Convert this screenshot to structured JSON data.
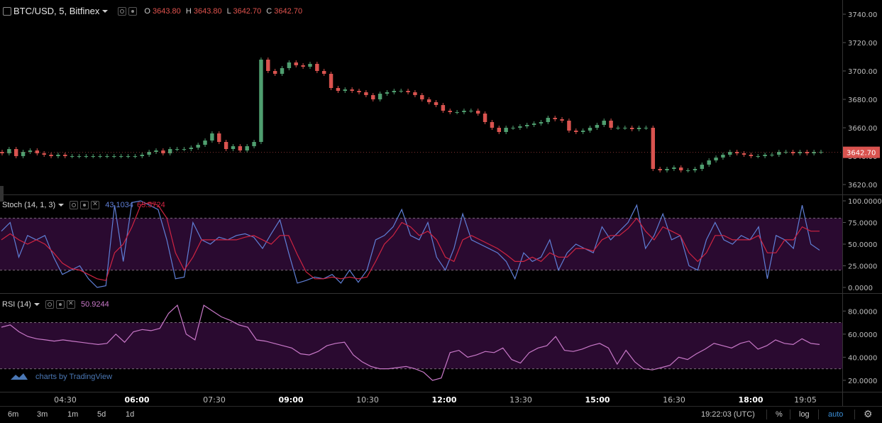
{
  "header": {
    "symbol": "BTC/USD, 5, Bitfinex",
    "ohlc": [
      {
        "key": "O",
        "value": "3643.80"
      },
      {
        "key": "H",
        "value": "3643.80"
      },
      {
        "key": "L",
        "value": "3642.70"
      },
      {
        "key": "C",
        "value": "3642.70"
      }
    ]
  },
  "stoch": {
    "label": "Stoch (14, 1, 3)",
    "k": "43.1034",
    "d": "65.5724"
  },
  "rsi": {
    "label": "RSI (14)",
    "value": "50.9244"
  },
  "watermark": "charts by TradingView",
  "bottom": {
    "ranges": [
      "6m",
      "3m",
      "1m",
      "5d",
      "1d"
    ],
    "clock": "19:22:03 (UTC)",
    "percent": "%",
    "log": "log",
    "auto": "auto"
  },
  "colors": {
    "up": "#4f9e6f",
    "down": "#d9534f",
    "stoch_k": "#5f7fd6",
    "stoch_d": "#d02442",
    "rsi": "#c878c8",
    "band": "#2a0a30"
  },
  "chart_data": [
    {
      "type": "candlestick",
      "title": "BTC/USD, 5, Bitfinex",
      "ylim": [
        3615,
        3748
      ],
      "yticks": [
        "3740.00",
        "3720.00",
        "3700.00",
        "3680.00",
        "3660.00",
        "3640.00",
        "3620.00"
      ],
      "last_price": "3642.70",
      "xticks": [
        "04:30",
        "06:00",
        "07:30",
        "09:00",
        "10:30",
        "12:00",
        "13:30",
        "15:00",
        "16:30",
        "18:00",
        "19:05"
      ],
      "series": [
        {
          "values": [
            3642,
            3645,
            3640,
            3643,
            3644,
            3642,
            3641,
            3640,
            3641,
            3640,
            3640,
            3640,
            3640,
            3640,
            3640,
            3640,
            3640,
            3640,
            3640,
            3640,
            3641,
            3643,
            3644,
            3642,
            3645,
            3645,
            3645,
            3646,
            3648,
            3651,
            3656,
            3650,
            3645,
            3647,
            3644,
            3647,
            3650,
            3708,
            3700,
            3698,
            3702,
            3706,
            3704,
            3703,
            3705,
            3700,
            3698,
            3688,
            3686,
            3687,
            3686,
            3685,
            3683,
            3680,
            3684,
            3685,
            3686,
            3686,
            3685,
            3683,
            3680,
            3678,
            3676,
            3672,
            3671,
            3671,
            3672,
            3672,
            3670,
            3664,
            3660,
            3657,
            3660,
            3660,
            3661,
            3662,
            3663,
            3664,
            3667,
            3666,
            3665,
            3658,
            3657,
            3658,
            3660,
            3662,
            3665,
            3660,
            3660,
            3660,
            3659,
            3660,
            3660,
            3631,
            3630,
            3631,
            3632,
            3630,
            3630,
            3631,
            3634,
            3637,
            3639,
            3641,
            3643,
            3642,
            3641,
            3640,
            3640,
            3641,
            3641,
            3643,
            3643,
            3642,
            3643,
            3642,
            3643,
            3643
          ]
        }
      ]
    },
    {
      "type": "line",
      "title": "Stoch (14, 1, 3)",
      "ylim": [
        0,
        100
      ],
      "yticks": [
        "100.0000",
        "75.0000",
        "50.0000",
        "25.0000",
        "0.0000"
      ],
      "bands": [
        20,
        80
      ],
      "series": [
        {
          "name": "%K",
          "values": [
            65,
            75,
            35,
            60,
            55,
            60,
            35,
            15,
            20,
            25,
            10,
            0,
            2,
            95,
            30,
            98,
            100,
            95,
            90,
            55,
            10,
            12,
            75,
            55,
            50,
            58,
            55,
            60,
            62,
            58,
            45,
            62,
            78,
            40,
            5,
            8,
            12,
            10,
            15,
            5,
            20,
            6,
            20,
            55,
            60,
            70,
            90,
            60,
            55,
            75,
            35,
            20,
            45,
            85,
            55,
            50,
            45,
            40,
            30,
            10,
            40,
            30,
            35,
            55,
            20,
            40,
            50,
            45,
            40,
            70,
            55,
            65,
            75,
            95,
            45,
            60,
            85,
            55,
            60,
            25,
            20,
            55,
            75,
            55,
            50,
            60,
            55,
            70,
            10,
            60,
            55,
            45,
            95,
            50,
            43
          ]
        },
        {
          "name": "%D",
          "values": [
            55,
            62,
            55,
            50,
            55,
            50,
            40,
            28,
            22,
            20,
            15,
            10,
            8,
            40,
            50,
            70,
            95,
            98,
            95,
            80,
            40,
            20,
            35,
            55,
            55,
            55,
            55,
            55,
            58,
            60,
            55,
            50,
            60,
            60,
            38,
            18,
            10,
            10,
            12,
            10,
            12,
            10,
            12,
            30,
            50,
            60,
            75,
            70,
            60,
            65,
            55,
            35,
            30,
            55,
            60,
            55,
            50,
            45,
            38,
            30,
            30,
            35,
            30,
            40,
            35,
            35,
            45,
            45,
            42,
            55,
            60,
            60,
            68,
            80,
            65,
            55,
            70,
            65,
            60,
            40,
            30,
            40,
            60,
            60,
            55,
            55,
            55,
            60,
            40,
            40,
            55,
            55,
            70,
            65,
            65
          ]
        }
      ]
    },
    {
      "type": "line",
      "title": "RSI (14)",
      "ylim": [
        15,
        90
      ],
      "yticks": [
        "80.0000",
        "60.0000",
        "40.0000",
        "20.0000"
      ],
      "bands": [
        30,
        70
      ],
      "series": [
        {
          "name": "RSI",
          "values": [
            66,
            68,
            62,
            58,
            56,
            55,
            54,
            55,
            54,
            53,
            52,
            51,
            52,
            60,
            53,
            62,
            64,
            63,
            65,
            78,
            85,
            60,
            55,
            85,
            80,
            75,
            72,
            68,
            66,
            55,
            54,
            52,
            50,
            48,
            43,
            42,
            45,
            50,
            52,
            53,
            42,
            36,
            32,
            30,
            30,
            31,
            32,
            30,
            27,
            20,
            22,
            44,
            46,
            40,
            42,
            45,
            44,
            48,
            38,
            35,
            44,
            48,
            50,
            58,
            46,
            45,
            47,
            50,
            52,
            48,
            34,
            46,
            36,
            30,
            29,
            31,
            33,
            40,
            38,
            43,
            47,
            52,
            50,
            48,
            52,
            54,
            47,
            50,
            55,
            52,
            51,
            56,
            52,
            51
          ]
        }
      ]
    }
  ]
}
